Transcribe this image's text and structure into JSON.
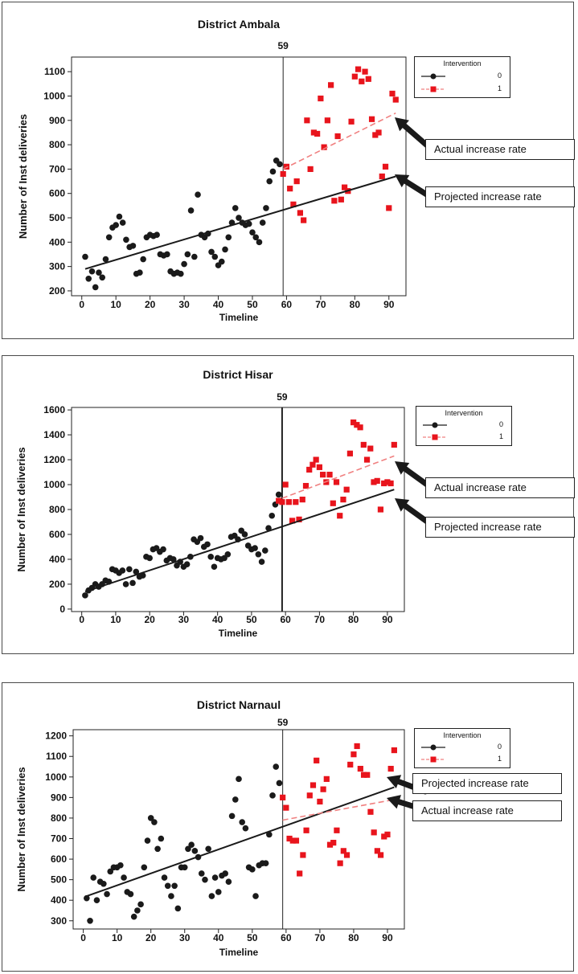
{
  "chart_data": [
    {
      "type": "scatter",
      "title": "District Ambala",
      "xlabel": "Timeline",
      "ylabel": "Number of Inst deliveries",
      "xlim": [
        -3,
        95
      ],
      "ylim": [
        180,
        1160
      ],
      "xticks": [
        0,
        10,
        20,
        30,
        40,
        50,
        60,
        70,
        80,
        90
      ],
      "yticks": [
        200,
        300,
        400,
        500,
        600,
        700,
        800,
        900,
        1000,
        1100
      ],
      "vline": {
        "x": 59,
        "label": "59"
      },
      "legend": {
        "title": "Intervention",
        "position": "right",
        "entries": [
          "0",
          "1"
        ]
      },
      "series": [
        {
          "name": "0",
          "color": "#1a1a1a",
          "marker": "circle",
          "x": [
            1,
            2,
            3,
            4,
            5,
            6,
            7,
            8,
            9,
            10,
            11,
            12,
            13,
            14,
            15,
            16,
            17,
            18,
            19,
            20,
            21,
            22,
            23,
            24,
            25,
            26,
            27,
            28,
            29,
            30,
            31,
            32,
            33,
            34,
            35,
            36,
            37,
            38,
            39,
            40,
            41,
            42,
            43,
            44,
            45,
            46,
            47,
            48,
            49,
            50,
            51,
            52,
            53,
            54,
            55,
            56,
            57,
            58
          ],
          "y": [
            340,
            250,
            280,
            215,
            275,
            255,
            330,
            420,
            460,
            470,
            505,
            480,
            410,
            380,
            385,
            270,
            275,
            330,
            420,
            430,
            425,
            430,
            350,
            345,
            350,
            280,
            270,
            275,
            270,
            310,
            350,
            530,
            340,
            595,
            430,
            420,
            435,
            360,
            340,
            305,
            320,
            370,
            420,
            480,
            540,
            500,
            480,
            470,
            475,
            440,
            420,
            400,
            480,
            540,
            650,
            690,
            735,
            720
          ]
        },
        {
          "name": "1",
          "color": "#e8141c",
          "marker": "square",
          "x": [
            59,
            60,
            61,
            62,
            63,
            64,
            65,
            66,
            67,
            68,
            69,
            70,
            71,
            72,
            73,
            74,
            75,
            76,
            77,
            78,
            79,
            80,
            81,
            82,
            83,
            84,
            85,
            86,
            87,
            88,
            89,
            90,
            91,
            92
          ],
          "y": [
            680,
            710,
            620,
            555,
            650,
            520,
            490,
            900,
            700,
            850,
            845,
            990,
            790,
            900,
            1045,
            570,
            835,
            575,
            625,
            610,
            895,
            1080,
            1110,
            1060,
            1100,
            1070,
            905,
            840,
            850,
            670,
            710,
            540,
            1010,
            985
          ]
        }
      ],
      "lines": [
        {
          "name": "fit",
          "color": "#1a1a1a",
          "dash": false,
          "x": [
            1,
            92
          ],
          "y": [
            290,
            670
          ]
        },
        {
          "name": "projected",
          "color": "#f08080",
          "dash": true,
          "x": [
            59,
            92
          ],
          "y": [
            700,
            930
          ]
        }
      ],
      "annotations": [
        {
          "text": "Actual increase rate",
          "target": [
            92,
            930
          ]
        },
        {
          "text": "Projected increase rate",
          "target": [
            92,
            670
          ]
        }
      ]
    },
    {
      "type": "scatter",
      "title": "District Hisar",
      "xlabel": "Timeline",
      "ylabel": "Number of Inst deliveries",
      "xlim": [
        -3,
        95
      ],
      "ylim": [
        -20,
        1620
      ],
      "xticks": [
        0,
        10,
        20,
        30,
        40,
        50,
        60,
        70,
        80,
        90
      ],
      "yticks": [
        0,
        200,
        400,
        600,
        800,
        1000,
        1200,
        1400,
        1600
      ],
      "vline": {
        "x": 59,
        "label": "59"
      },
      "legend": {
        "title": "Intervention",
        "position": "right",
        "entries": [
          "0",
          "1"
        ]
      },
      "series": [
        {
          "name": "0",
          "color": "#1a1a1a",
          "marker": "circle",
          "x": [
            1,
            2,
            3,
            4,
            5,
            6,
            7,
            8,
            9,
            10,
            11,
            12,
            13,
            14,
            15,
            16,
            17,
            18,
            19,
            20,
            21,
            22,
            23,
            24,
            25,
            26,
            27,
            28,
            29,
            30,
            31,
            32,
            33,
            34,
            35,
            36,
            37,
            38,
            39,
            40,
            41,
            42,
            43,
            44,
            45,
            46,
            47,
            48,
            49,
            50,
            51,
            52,
            53,
            54,
            55,
            56,
            57,
            58
          ],
          "y": [
            110,
            150,
            170,
            200,
            180,
            200,
            230,
            220,
            320,
            310,
            290,
            310,
            200,
            320,
            210,
            300,
            260,
            270,
            420,
            410,
            480,
            490,
            460,
            480,
            390,
            410,
            400,
            350,
            380,
            340,
            360,
            420,
            560,
            540,
            570,
            500,
            520,
            420,
            340,
            410,
            400,
            410,
            440,
            580,
            590,
            560,
            630,
            600,
            510,
            480,
            490,
            440,
            380,
            470,
            650,
            750,
            840,
            920
          ]
        },
        {
          "name": "1",
          "color": "#e8141c",
          "marker": "square",
          "x": [
            58,
            59,
            60,
            61,
            62,
            63,
            64,
            65,
            66,
            67,
            68,
            69,
            70,
            71,
            72,
            73,
            74,
            75,
            76,
            77,
            78,
            79,
            80,
            81,
            82,
            83,
            84,
            85,
            86,
            87,
            88,
            89,
            90,
            91,
            92
          ],
          "y": [
            870,
            860,
            1000,
            860,
            710,
            860,
            720,
            880,
            990,
            1120,
            1160,
            1200,
            1140,
            1080,
            1020,
            1080,
            850,
            1020,
            750,
            880,
            960,
            1250,
            1500,
            1480,
            1460,
            1320,
            1200,
            1290,
            1020,
            1030,
            800,
            1010,
            1020,
            1010,
            1320
          ]
        }
      ],
      "lines": [
        {
          "name": "fit",
          "color": "#1a1a1a",
          "dash": false,
          "x": [
            1,
            92
          ],
          "y": [
            140,
            960
          ]
        },
        {
          "name": "projected",
          "color": "#f08080",
          "dash": true,
          "x": [
            59,
            92
          ],
          "y": [
            890,
            1230
          ]
        }
      ],
      "annotations": [
        {
          "text": "Actual increase rate",
          "target": [
            92,
            1230
          ]
        },
        {
          "text": "Projected increase rate",
          "target": [
            92,
            960
          ]
        }
      ]
    },
    {
      "type": "scatter",
      "title": "District Narnaul",
      "xlabel": "Timeline",
      "ylabel": "Number of Inst deliveries",
      "xlim": [
        -3,
        95
      ],
      "ylim": [
        260,
        1230
      ],
      "xticks": [
        0,
        10,
        20,
        30,
        40,
        50,
        60,
        70,
        80,
        90
      ],
      "yticks": [
        300,
        400,
        500,
        600,
        700,
        800,
        900,
        1000,
        1100,
        1200
      ],
      "vline": {
        "x": 59,
        "label": "59"
      },
      "legend": {
        "title": "Intervention",
        "position": "right",
        "entries": [
          "0",
          "1"
        ]
      },
      "series": [
        {
          "name": "0",
          "color": "#1a1a1a",
          "marker": "circle",
          "x": [
            1,
            2,
            3,
            4,
            5,
            6,
            7,
            8,
            9,
            10,
            11,
            12,
            13,
            14,
            15,
            16,
            17,
            18,
            19,
            20,
            21,
            22,
            23,
            24,
            25,
            26,
            27,
            28,
            29,
            30,
            31,
            32,
            33,
            34,
            35,
            36,
            37,
            38,
            39,
            40,
            41,
            42,
            43,
            44,
            45,
            46,
            47,
            48,
            49,
            50,
            51,
            52,
            53,
            54,
            55,
            56,
            57,
            58
          ],
          "y": [
            410,
            300,
            510,
            400,
            490,
            480,
            430,
            540,
            560,
            560,
            570,
            510,
            440,
            430,
            320,
            350,
            380,
            560,
            690,
            800,
            780,
            650,
            700,
            510,
            470,
            420,
            470,
            360,
            560,
            560,
            650,
            670,
            640,
            610,
            530,
            500,
            650,
            420,
            510,
            440,
            520,
            530,
            490,
            810,
            890,
            990,
            780,
            750,
            560,
            550,
            420,
            570,
            580,
            580,
            720,
            910,
            1050,
            970
          ]
        },
        {
          "name": "1",
          "color": "#e8141c",
          "marker": "square",
          "x": [
            59,
            60,
            61,
            62,
            63,
            64,
            65,
            66,
            67,
            68,
            69,
            70,
            71,
            72,
            73,
            74,
            75,
            76,
            77,
            78,
            79,
            80,
            81,
            82,
            83,
            84,
            85,
            86,
            87,
            88,
            89,
            90,
            91,
            92
          ],
          "y": [
            900,
            850,
            700,
            690,
            690,
            530,
            620,
            740,
            910,
            960,
            1080,
            880,
            940,
            990,
            670,
            680,
            740,
            580,
            640,
            620,
            1060,
            1110,
            1150,
            1040,
            1010,
            1010,
            830,
            730,
            640,
            620,
            710,
            720,
            1040,
            1130
          ]
        }
      ],
      "lines": [
        {
          "name": "fit",
          "color": "#1a1a1a",
          "dash": false,
          "x": [
            1,
            92
          ],
          "y": [
            420,
            950
          ]
        },
        {
          "name": "projected",
          "color": "#f08080",
          "dash": true,
          "x": [
            59,
            92
          ],
          "y": [
            790,
            890
          ]
        }
      ],
      "annotations": [
        {
          "text": "Projected increase rate",
          "target": [
            92,
            950
          ]
        },
        {
          "text": "Actual increase rate",
          "target": [
            92,
            890
          ]
        }
      ]
    }
  ]
}
